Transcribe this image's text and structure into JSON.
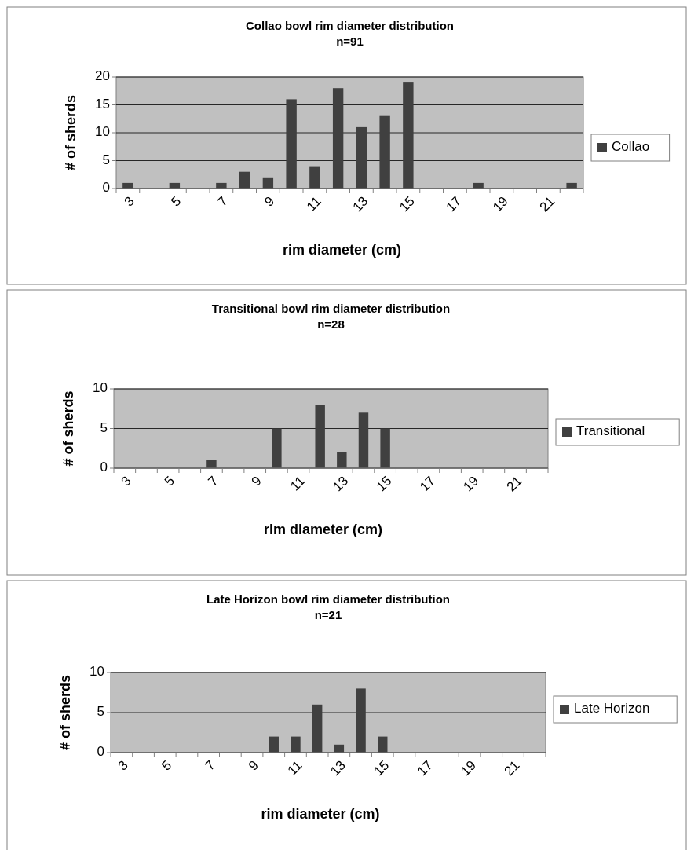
{
  "chart_data": [
    {
      "type": "bar",
      "title": "Collao bowl rim diameter distribution",
      "subtitle": "n=91",
      "xlabel": "rim diameter (cm)",
      "ylabel": "# of sherds",
      "categories": [
        "3",
        null,
        "5",
        null,
        "7",
        null,
        "9",
        null,
        "11",
        null,
        "13",
        null,
        "15",
        null,
        "17",
        null,
        "19",
        null,
        "21",
        null
      ],
      "series": [
        {
          "name": "Collao",
          "color": "#404040",
          "values": [
            1,
            0,
            1,
            0,
            1,
            3,
            2,
            16,
            4,
            18,
            11,
            13,
            19,
            0,
            0,
            1,
            0,
            0,
            0,
            1
          ]
        }
      ],
      "ylim": [
        0,
        20
      ],
      "yticks": [
        0,
        5,
        10,
        15,
        20
      ],
      "grid": "y",
      "legend": "right"
    },
    {
      "type": "bar",
      "title": "Transitional bowl rim diameter distribution",
      "subtitle": "n=28",
      "xlabel": "rim diameter (cm)",
      "ylabel": "# of sherds",
      "categories": [
        "3",
        null,
        "5",
        null,
        "7",
        null,
        "9",
        null,
        "11",
        null,
        "13",
        null,
        "15",
        null,
        "17",
        null,
        "19",
        null,
        "21",
        null
      ],
      "series": [
        {
          "name": "Transitional",
          "color": "#404040",
          "values": [
            0,
            0,
            0,
            0,
            1,
            0,
            0,
            5,
            0,
            8,
            2,
            7,
            5,
            0,
            0,
            0,
            0,
            0,
            0,
            0
          ]
        }
      ],
      "ylim": [
        0,
        10
      ],
      "yticks": [
        0,
        5,
        10
      ],
      "grid": "y",
      "legend": "right"
    },
    {
      "type": "bar",
      "title": "Late Horizon bowl rim diameter distribution",
      "subtitle": "n=21",
      "xlabel": "rim diameter (cm)",
      "ylabel": "# of sherds",
      "categories": [
        "3",
        null,
        "5",
        null,
        "7",
        null,
        "9",
        null,
        "11",
        null,
        "13",
        null,
        "15",
        null,
        "17",
        null,
        "19",
        null,
        "21",
        null
      ],
      "series": [
        {
          "name": "Late Horizon",
          "color": "#404040",
          "values": [
            0,
            0,
            0,
            0,
            0,
            0,
            0,
            2,
            2,
            6,
            1,
            8,
            2,
            0,
            0,
            0,
            0,
            0,
            0,
            0
          ]
        }
      ],
      "ylim": [
        0,
        10
      ],
      "yticks": [
        0,
        5,
        10
      ],
      "grid": "y",
      "legend": "right"
    }
  ]
}
